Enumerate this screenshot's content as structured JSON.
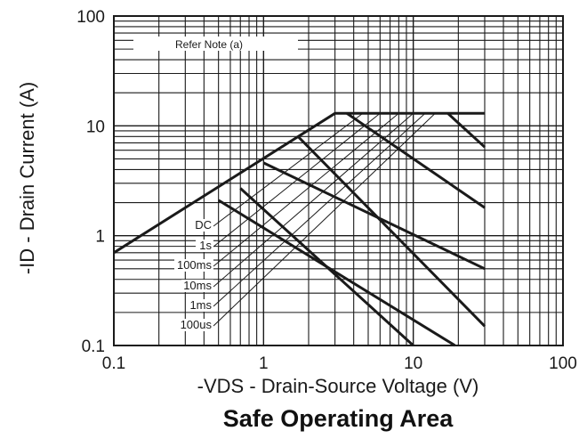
{
  "chart_data": {
    "type": "line",
    "title": "Safe Operating Area",
    "xlabel": "-VDS - Drain-Source Voltage (V)",
    "ylabel": "-ID - Drain Current (A)",
    "x_scale": "log",
    "y_scale": "log",
    "xlim": [
      0.1,
      100
    ],
    "ylim": [
      0.1,
      100
    ],
    "x_ticks": [
      {
        "value": 0.1,
        "label": "0.1"
      },
      {
        "value": 1,
        "label": "1"
      },
      {
        "value": 10,
        "label": "10"
      },
      {
        "value": 100,
        "label": "100"
      }
    ],
    "y_ticks": [
      {
        "value": 0.1,
        "label": "0.1"
      },
      {
        "value": 1,
        "label": "1"
      },
      {
        "value": 10,
        "label": "10"
      },
      {
        "value": 100,
        "label": "100"
      }
    ],
    "grid": true,
    "note": "Refer Note (a)",
    "limit_lines": [
      {
        "points": [
          [
            0.1,
            0.7
          ],
          [
            3,
            13
          ],
          [
            30,
            13
          ]
        ]
      }
    ],
    "series": [
      {
        "name": "DC",
        "points": [
          [
            0.5,
            2.1
          ],
          [
            19,
            0.1
          ]
        ]
      },
      {
        "name": "1s",
        "points": [
          [
            0.7,
            2.7
          ],
          [
            10,
            0.1
          ]
        ]
      },
      {
        "name": "100ms",
        "points": [
          [
            1.7,
            8
          ],
          [
            30,
            0.15
          ]
        ]
      },
      {
        "name": "10ms",
        "points": [
          [
            1,
            4.6
          ],
          [
            30,
            0.5
          ]
        ]
      },
      {
        "name": "1ms",
        "points": [
          [
            3.6,
            13
          ],
          [
            30,
            1.8
          ]
        ]
      },
      {
        "name": "100us",
        "points": [
          [
            17,
            13
          ],
          [
            30,
            6.4
          ]
        ]
      }
    ],
    "label_leaders": [
      {
        "label": "DC",
        "to": [
          4.6,
          13
        ]
      },
      {
        "label": "1s",
        "to": [
          6,
          13
        ]
      },
      {
        "label": "100ms",
        "to": [
          8,
          13
        ]
      },
      {
        "label": "10ms",
        "to": [
          10,
          13
        ]
      },
      {
        "label": "1ms",
        "to": [
          12,
          13
        ]
      },
      {
        "label": "100us",
        "to": [
          14,
          13
        ]
      }
    ],
    "colors": {
      "line": "#1a1a1a",
      "grid": "#1a1a1a",
      "background": "#ffffff"
    }
  }
}
